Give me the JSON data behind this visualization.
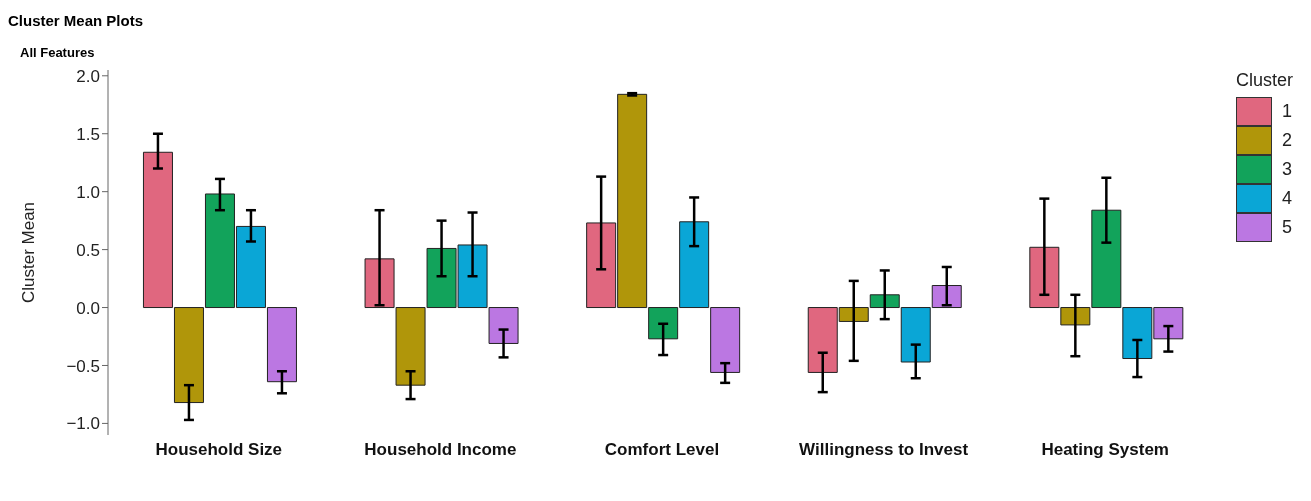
{
  "chart_data": {
    "type": "bar",
    "title": "Cluster Mean Plots",
    "subtitle": "All Features",
    "ylabel": "Cluster Mean",
    "legend_title": "Cluster",
    "legend": "right",
    "grid": false,
    "categories": [
      "Household Size",
      "Household Income",
      "Comfort Level",
      "Willingness to Invest",
      "Heating System"
    ],
    "ylim": [
      -1.1,
      2.05
    ],
    "yticks": [
      {
        "value": -1,
        "label": "−1.0"
      },
      {
        "value": -0.5,
        "label": "−0.5"
      },
      {
        "value": 0,
        "label": "0.0"
      },
      {
        "value": 0.5,
        "label": "0.5"
      },
      {
        "value": 1,
        "label": "1.0"
      },
      {
        "value": 1.5,
        "label": "1.5"
      },
      {
        "value": 2,
        "label": "2.0"
      }
    ],
    "series": [
      {
        "name": "1",
        "color": "#e0677f",
        "values": [
          1.34,
          0.42,
          0.73,
          -0.56,
          0.52
        ],
        "errors": [
          [
            1.2,
            1.5
          ],
          [
            0.02,
            0.84
          ],
          [
            0.33,
            1.13
          ],
          [
            -0.73,
            -0.39
          ],
          [
            0.11,
            0.94
          ]
        ]
      },
      {
        "name": "2",
        "color": "#b0960a",
        "values": [
          -0.82,
          -0.67,
          1.84,
          -0.12,
          -0.15
        ],
        "errors": [
          [
            -0.97,
            -0.67
          ],
          [
            -0.79,
            -0.55
          ],
          [
            1.83,
            1.85
          ],
          [
            -0.46,
            0.23
          ],
          [
            -0.42,
            0.11
          ]
        ]
      },
      {
        "name": "3",
        "color": "#12a35b",
        "values": [
          0.98,
          0.51,
          -0.27,
          0.11,
          0.84
        ],
        "errors": [
          [
            0.84,
            1.11
          ],
          [
            0.27,
            0.75
          ],
          [
            -0.41,
            -0.14
          ],
          [
            -0.1,
            0.32
          ],
          [
            0.56,
            1.12
          ]
        ]
      },
      {
        "name": "4",
        "color": "#0aa6d6",
        "values": [
          0.7,
          0.54,
          0.74,
          -0.47,
          -0.44
        ],
        "errors": [
          [
            0.57,
            0.84
          ],
          [
            0.27,
            0.82
          ],
          [
            0.53,
            0.95
          ],
          [
            -0.61,
            -0.32
          ],
          [
            -0.6,
            -0.28
          ]
        ]
      },
      {
        "name": "5",
        "color": "#bb77e2",
        "values": [
          -0.64,
          -0.31,
          -0.56,
          0.19,
          -0.27
        ],
        "errors": [
          [
            -0.74,
            -0.55
          ],
          [
            -0.43,
            -0.19
          ],
          [
            -0.65,
            -0.48
          ],
          [
            0.02,
            0.35
          ],
          [
            -0.38,
            -0.16
          ]
        ]
      }
    ]
  }
}
